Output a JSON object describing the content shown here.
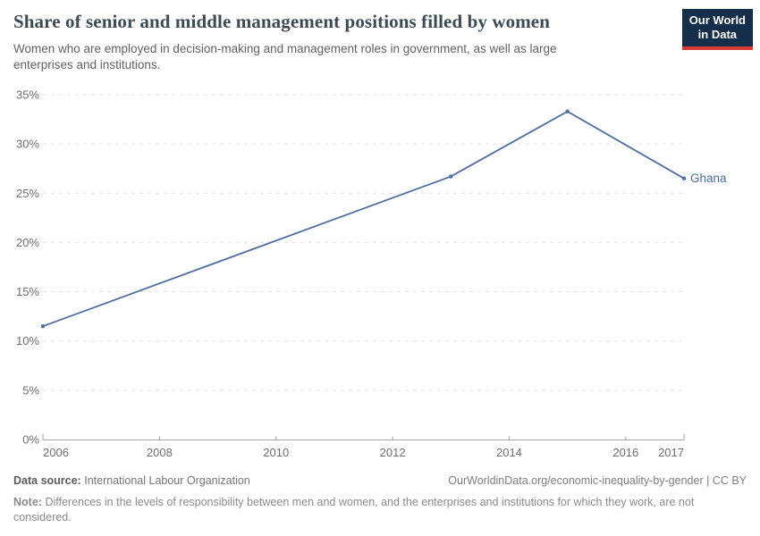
{
  "header": {
    "title": "Share of senior and middle management positions filled by women",
    "subtitle": "Women who are employed in decision-making and management roles in government, as well as large enterprises and institutions.",
    "logo": {
      "line1": "Our World",
      "line2": "in Data"
    }
  },
  "chart_data": {
    "type": "line",
    "title": "Share of senior and middle management positions filled by women",
    "xlabel": "",
    "ylabel": "",
    "xlim": [
      2006,
      2017
    ],
    "ylim": [
      0,
      35
    ],
    "grid": "dashed horizontal gridlines",
    "legend": "label at end of line",
    "x_ticks": {
      "values": [
        2006,
        2008,
        2010,
        2012,
        2014,
        2016,
        2017
      ],
      "labels": [
        "2006",
        "2008",
        "2010",
        "2012",
        "2014",
        "2016",
        "2017"
      ]
    },
    "y_ticks": {
      "values": [
        0,
        5,
        10,
        15,
        20,
        25,
        30,
        35
      ],
      "labels": [
        "0%",
        "5%",
        "10%",
        "15%",
        "20%",
        "25%",
        "30%",
        "35%"
      ]
    },
    "series": [
      {
        "name": "Ghana",
        "x": [
          2006,
          2013,
          2015,
          2017
        ],
        "values": [
          11.5,
          26.7,
          33.3,
          26.5
        ]
      }
    ]
  },
  "colors": {
    "line": "#4e6da5",
    "series_label": "#4a6ba5",
    "grid": "#e3e3e3",
    "axis": "#a3a3a3",
    "tick_label": "#6e6e6e",
    "logo_bg": "#142e4c",
    "logo_red": "#d93a32"
  },
  "footer": {
    "source_label": "Data source:",
    "source_value": "International Labour Organization",
    "license": "OurWorldinData.org/economic-inequality-by-gender | CC BY",
    "note_label": "Note:",
    "note_value": "Differences in the levels of responsibility between men and women, and the enterprises and institutions for which they work, are not considered."
  }
}
